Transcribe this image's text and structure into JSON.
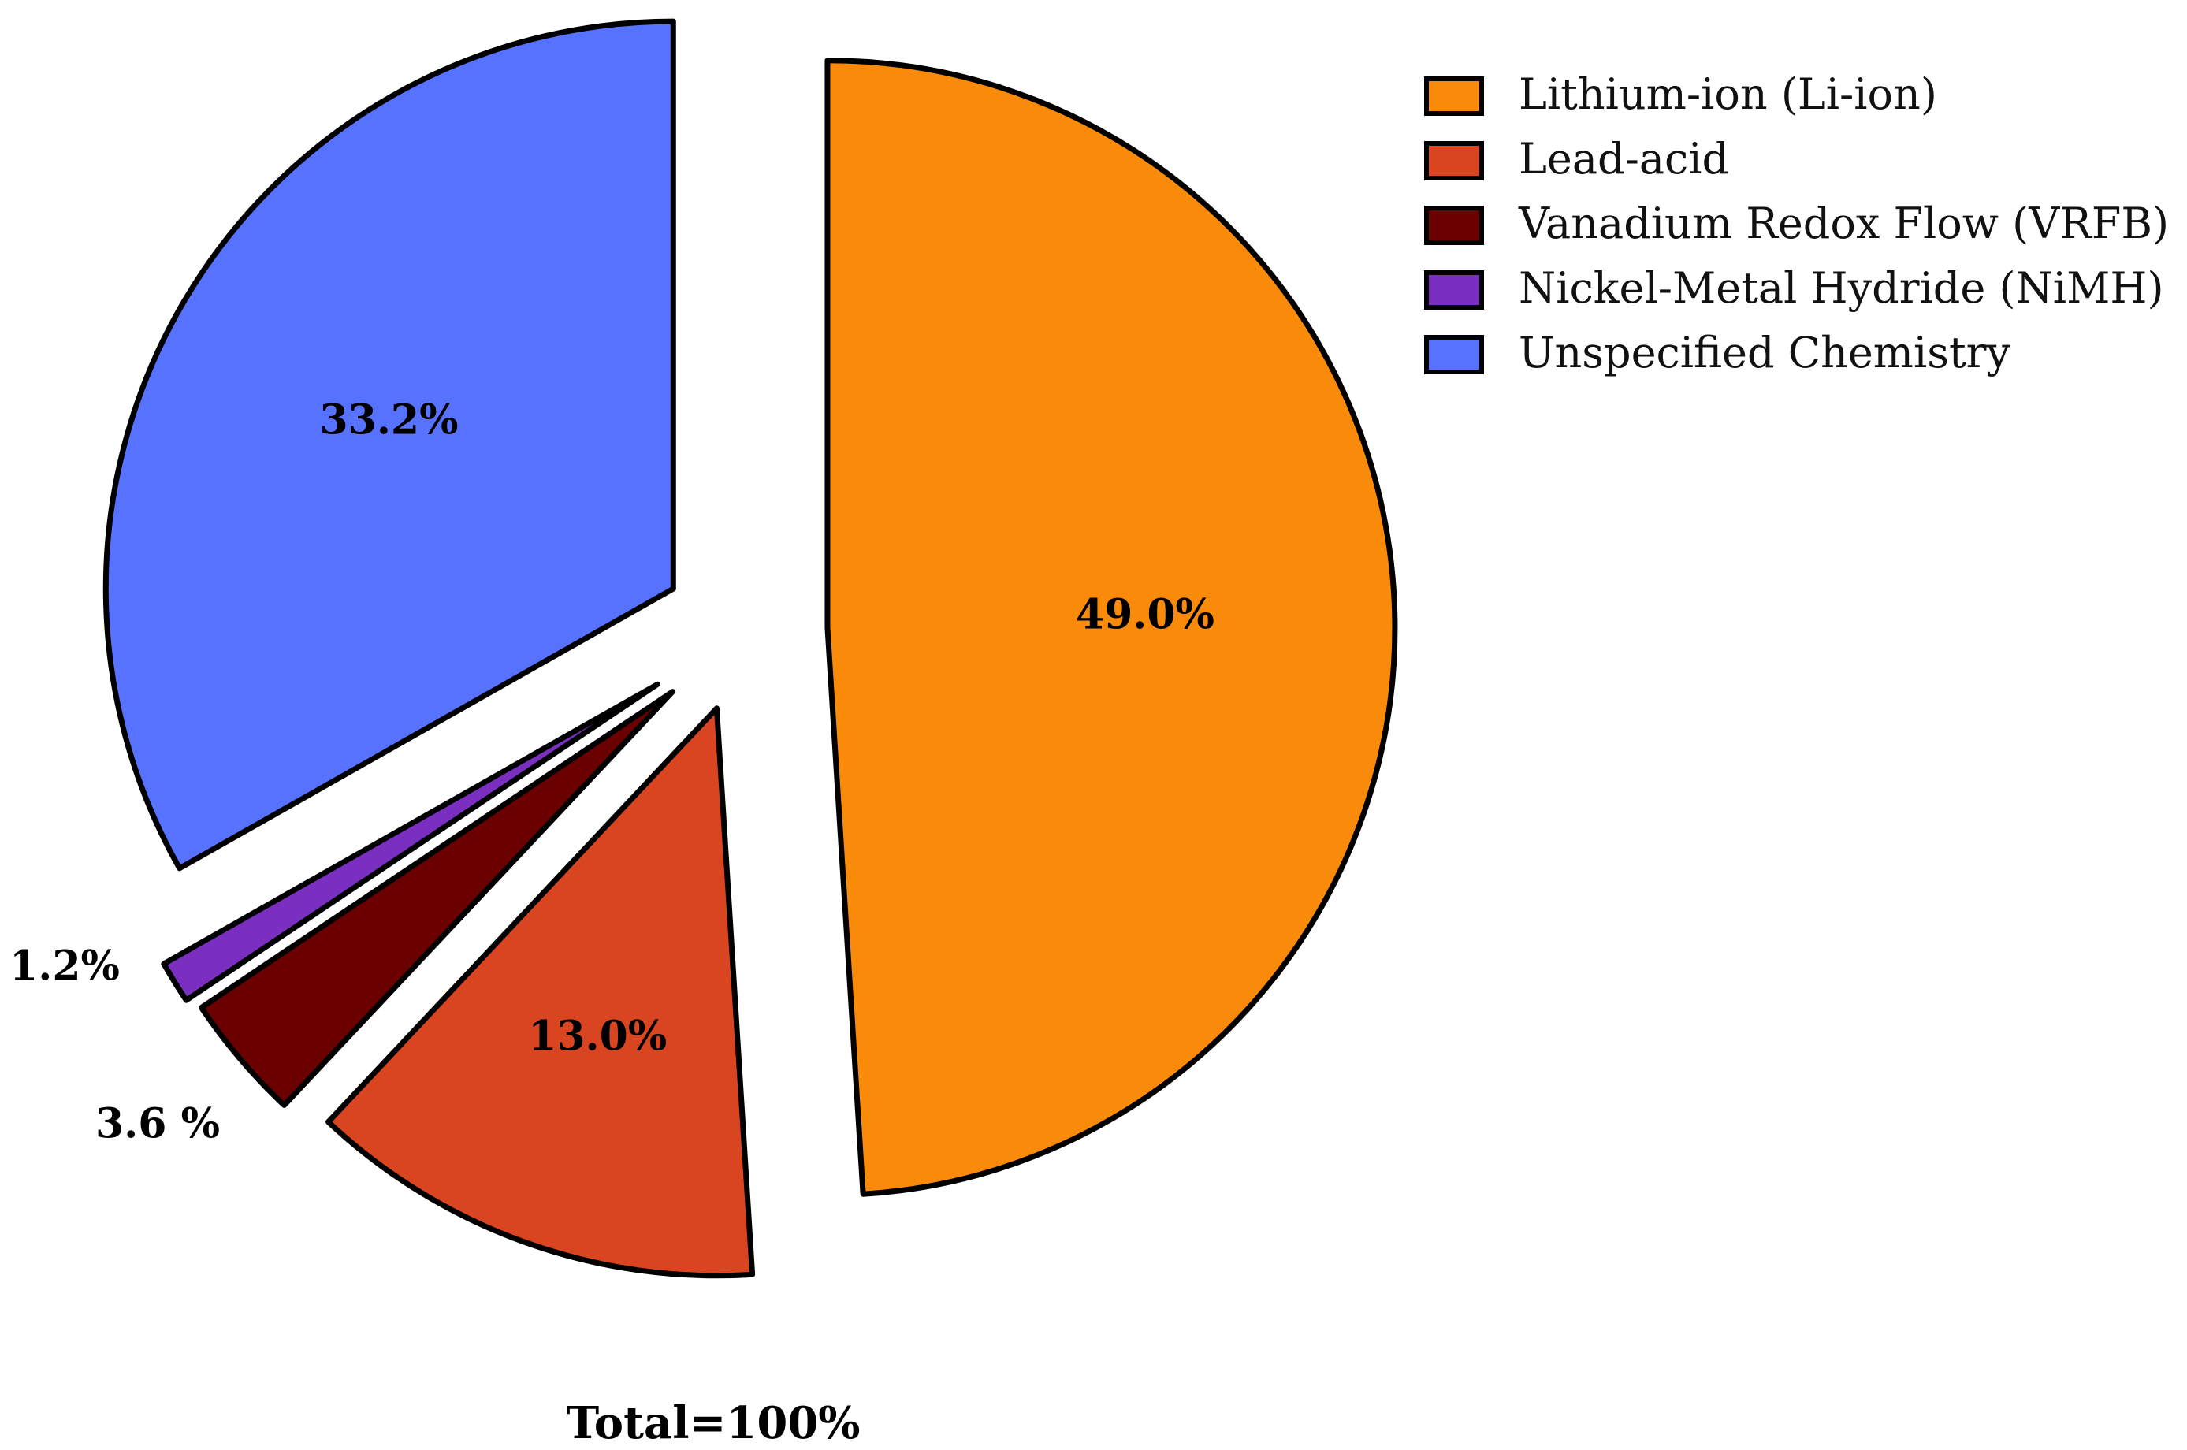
{
  "chart_data": {
    "type": "pie",
    "slices": [
      {
        "name": "Lithium-ion (Li-ion)",
        "value": 49.0,
        "label": "49.0%",
        "color": "#F98A0A"
      },
      {
        "name": "Lead-acid",
        "value": 13.0,
        "label": "13.0%",
        "color": "#D84520"
      },
      {
        "name": "Vanadium Redox Flow (VRFB)",
        "value": 3.6,
        "label": "3.6 %",
        "color": "#6B0000"
      },
      {
        "name": "Nickel-Metal Hydride (NiMH)",
        "value": 1.2,
        "label": "1.2%",
        "color": "#7B2FC0"
      },
      {
        "name": "Unspecified Chemistry",
        "value": 33.2,
        "label": "33.2%",
        "color": "#5772FF"
      }
    ],
    "exploded": true,
    "legend_position": "top-right",
    "total_label": "Total=100%"
  }
}
